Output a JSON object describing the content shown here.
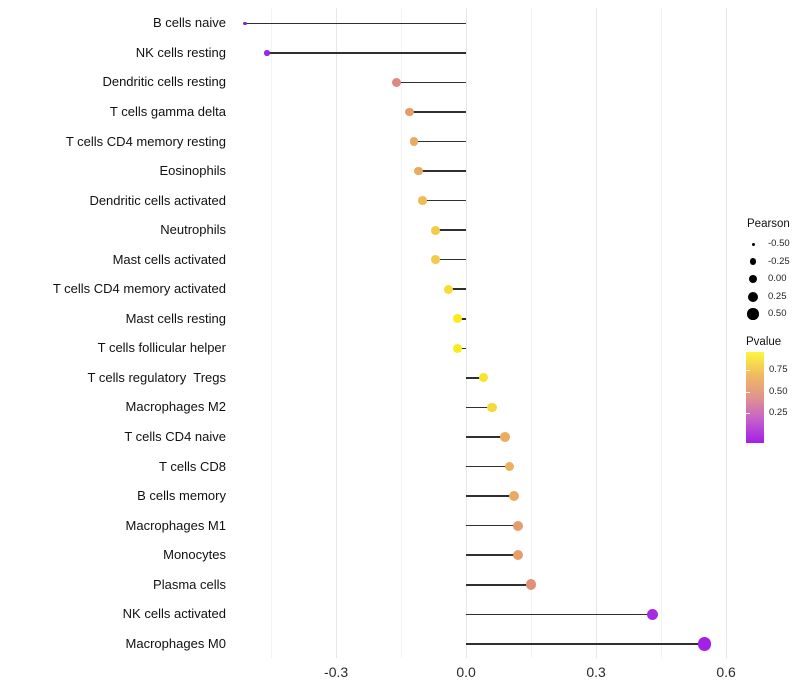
{
  "chart_data": {
    "type": "lollipop",
    "orientation": "horizontal",
    "title": "",
    "xlabel": "",
    "ylabel": "",
    "xlim": [
      -0.531,
      0.632
    ],
    "x_ticks": [
      -0.3,
      0.0,
      0.3,
      0.6
    ],
    "x_tick_labels": [
      "-0.3",
      "0.0",
      "0.3",
      "0.6"
    ],
    "grid_major": [
      -0.3,
      0.0,
      0.3,
      0.6
    ],
    "grid_minor": [
      -0.45,
      -0.15,
      0.15,
      0.45
    ],
    "baseline_value": 0.0,
    "stick_color": "#2f2f2f",
    "categories": [
      "B cells naive",
      "NK cells resting",
      "Dendritic cells resting",
      "T cells gamma delta",
      "T cells CD4 memory resting",
      "Eosinophils",
      "Dendritic cells activated",
      "Neutrophils",
      "Mast cells activated",
      "T cells CD4 memory activated",
      "Mast cells resting",
      "T cells follicular helper",
      "T cells regulatory  Tregs",
      "Macrophages M2",
      "T cells CD4 naive",
      "T cells CD8",
      "B cells memory",
      "Macrophages M1",
      "Monocytes",
      "Plasma cells",
      "NK cells activated",
      "Macrophages M0"
    ],
    "points": [
      {
        "label": "B cells naive",
        "pearson": -0.51,
        "color": "#8128D2",
        "d": 3.5
      },
      {
        "label": "NK cells resting",
        "pearson": -0.46,
        "color": "#9529E4",
        "d": 5.5
      },
      {
        "label": "Dendritic cells resting",
        "pearson": -0.16,
        "color": "#DE8980",
        "d": 9.0
      },
      {
        "label": "T cells gamma delta",
        "pearson": -0.13,
        "color": "#E89C6C",
        "d": 8.6
      },
      {
        "label": "T cells CD4 memory resting",
        "pearson": -0.12,
        "color": "#EAA965",
        "d": 8.6
      },
      {
        "label": "Eosinophils",
        "pearson": -0.11,
        "color": "#EAAA63",
        "d": 8.6
      },
      {
        "label": "Dendritic cells activated",
        "pearson": -0.1,
        "color": "#EFBC55",
        "d": 8.6
      },
      {
        "label": "Neutrophils",
        "pearson": -0.07,
        "color": "#F2CB48",
        "d": 8.8
      },
      {
        "label": "Mast cells activated",
        "pearson": -0.07,
        "color": "#F2CB48",
        "d": 8.8
      },
      {
        "label": "T cells CD4 memory activated",
        "pearson": -0.04,
        "color": "#F7DD33",
        "d": 9.0
      },
      {
        "label": "Mast cells resting",
        "pearson": -0.02,
        "color": "#FAEB1D",
        "d": 9.0
      },
      {
        "label": "T cells follicular helper",
        "pearson": -0.02,
        "color": "#FAEC1C",
        "d": 9.0
      },
      {
        "label": "T cells regulatory  Tregs",
        "pearson": 0.04,
        "color": "#F8E52A",
        "d": 9.2
      },
      {
        "label": "Macrophages M2",
        "pearson": 0.06,
        "color": "#F5D83B",
        "d": 9.4
      },
      {
        "label": "T cells CD4 naive",
        "pearson": 0.09,
        "color": "#EBAE60",
        "d": 9.8
      },
      {
        "label": "T cells CD8",
        "pearson": 0.1,
        "color": "#ECB15D",
        "d": 9.8
      },
      {
        "label": "B cells memory",
        "pearson": 0.11,
        "color": "#EAAA64",
        "d": 10.0
      },
      {
        "label": "Macrophages M1",
        "pearson": 0.12,
        "color": "#E69C6D",
        "d": 10.2
      },
      {
        "label": "Monocytes",
        "pearson": 0.12,
        "color": "#E79F6A",
        "d": 10.2
      },
      {
        "label": "Plasma cells",
        "pearson": 0.15,
        "color": "#E28E7B",
        "d": 10.6
      },
      {
        "label": "NK cells activated",
        "pearson": 0.43,
        "color": "#A72BE3",
        "d": 11.6
      },
      {
        "label": "Macrophages M0",
        "pearson": 0.55,
        "color": "#A321E6",
        "d": 13.4
      }
    ]
  },
  "legends": {
    "pearson": {
      "title": "Pearson",
      "items": [
        {
          "label": "-0.50",
          "d": 3.0
        },
        {
          "label": "-0.25",
          "d": 6.5
        },
        {
          "label": "0.00",
          "d": 8.5
        },
        {
          "label": "0.25",
          "d": 10.0
        },
        {
          "label": "0.50",
          "d": 11.5
        }
      ],
      "dot_color": "#000000"
    },
    "pvalue": {
      "title": "Pvalue",
      "tick_labels": [
        "0.75",
        "0.50",
        "0.25"
      ],
      "gradient_top_to_bottom": [
        "#FCF63E",
        "#F0BB60",
        "#E0938D",
        "#C45ECC",
        "#A21FE8"
      ]
    }
  }
}
